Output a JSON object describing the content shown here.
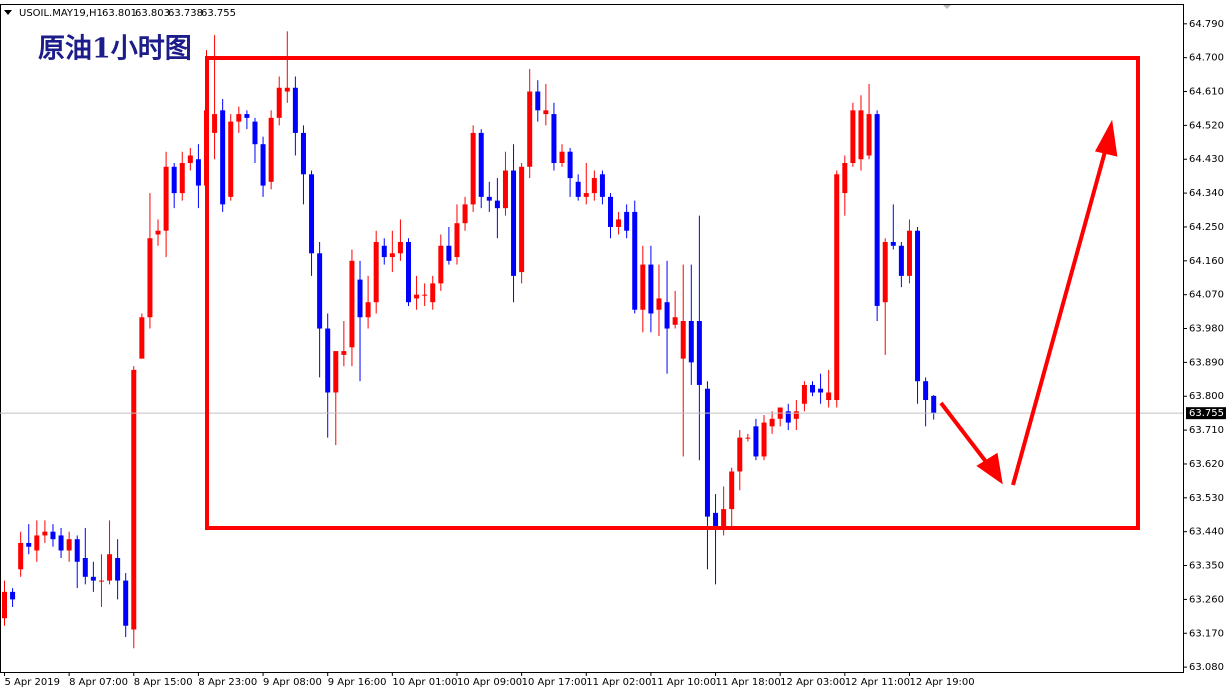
{
  "chart_data": {
    "type": "candlestick",
    "title": "USOIL.MAY19,H1",
    "annotation": "原油1小时图",
    "up_color": "#ff0000",
    "down_color": "#0000ff",
    "ylim": [
      63.067,
      64.84
    ],
    "yticks": [
      {
        "value": 64.79,
        "label": "64.790"
      },
      {
        "value": 64.7,
        "label": "64.700"
      },
      {
        "value": 64.61,
        "label": "64.610"
      },
      {
        "value": 64.52,
        "label": "64.520"
      },
      {
        "value": 64.43,
        "label": "64.430"
      },
      {
        "value": 64.34,
        "label": "64.340"
      },
      {
        "value": 64.25,
        "label": "64.250"
      },
      {
        "value": 64.16,
        "label": "64.160"
      },
      {
        "value": 64.07,
        "label": "64.070"
      },
      {
        "value": 63.98,
        "label": "63.980"
      },
      {
        "value": 63.89,
        "label": "63.890"
      },
      {
        "value": 63.8,
        "label": "63.800"
      },
      {
        "value": 63.71,
        "label": "63.710"
      },
      {
        "value": 63.62,
        "label": "63.620"
      },
      {
        "value": 63.53,
        "label": "63.530"
      },
      {
        "value": 63.44,
        "label": "63.440"
      },
      {
        "value": 63.35,
        "label": "63.350"
      },
      {
        "value": 63.26,
        "label": "63.260"
      },
      {
        "value": 63.17,
        "label": "63.170"
      },
      {
        "value": 63.08,
        "label": "63.080"
      }
    ],
    "categories": [
      "5 Apr 2019",
      null,
      null,
      null,
      null,
      null,
      null,
      null,
      "8 Apr 07:00",
      null,
      null,
      null,
      null,
      null,
      null,
      null,
      "8 Apr 15:00",
      null,
      null,
      null,
      null,
      null,
      null,
      null,
      "8 Apr 23:00",
      null,
      null,
      null,
      null,
      null,
      null,
      null,
      "9 Apr 08:00",
      null,
      null,
      null,
      null,
      null,
      null,
      null,
      "9 Apr 16:00",
      null,
      null,
      null,
      null,
      null,
      null,
      null,
      "10 Apr 01:00",
      null,
      null,
      null,
      null,
      null,
      null,
      null,
      "10 Apr 09:00",
      null,
      null,
      null,
      null,
      null,
      null,
      null,
      "10 Apr 17:00",
      null,
      null,
      null,
      null,
      null,
      null,
      null,
      "11 Apr 02:00",
      null,
      null,
      null,
      null,
      null,
      null,
      null,
      "11 Apr 10:00",
      null,
      null,
      null,
      null,
      null,
      null,
      null,
      "11 Apr 18:00",
      null,
      null,
      null,
      null,
      null,
      null,
      null,
      "12 Apr 03:00",
      null,
      null,
      null,
      null,
      null,
      null,
      null,
      "12 Apr 11:00",
      null,
      null,
      null,
      null,
      null,
      null,
      null,
      "12 Apr 19:00",
      null,
      null,
      null
    ],
    "open": [
      63.21,
      63.28,
      63.34,
      63.41,
      63.39,
      63.43,
      63.44,
      63.43,
      63.39,
      63.42,
      63.37,
      63.32,
      63.31,
      63.31,
      63.37,
      63.31,
      63.18,
      63.9,
      64.01,
      64.23,
      64.24,
      64.41,
      64.34,
      64.42,
      64.43,
      64.36,
      64.5,
      64.56,
      64.33,
      64.53,
      64.55,
      64.53,
      64.47,
      64.37,
      64.54,
      64.61,
      64.62,
      64.5,
      64.39,
      64.18,
      63.98,
      63.81,
      63.91,
      63.93,
      64.11,
      64.01,
      64.05,
      64.2,
      64.17,
      64.18,
      64.21,
      64.06,
      64.07,
      64.05,
      64.1,
      64.2,
      64.17,
      64.26,
      64.31,
      64.5,
      64.33,
      64.32,
      64.3,
      64.4,
      64.13,
      64.41,
      64.61,
      64.55,
      64.55,
      64.42,
      64.45,
      64.37,
      64.33,
      64.34,
      64.39,
      64.33,
      64.25,
      64.29,
      64.29,
      64.03,
      64.15,
      64.03,
      64.05,
      63.99,
      63.9,
      64.0,
      64.0,
      63.82,
      63.49,
      63.45,
      63.5,
      63.6,
      63.69,
      63.72,
      63.64,
      63.72,
      63.74,
      63.76,
      63.74,
      63.78,
      63.83,
      63.82,
      63.79,
      63.79,
      64.34,
      64.42,
      64.43,
      64.44,
      64.55,
      64.05,
      64.21,
      64.2,
      64.12,
      64.24,
      63.84,
      63.801
    ],
    "high": [
      63.31,
      63.29,
      63.44,
      63.46,
      63.47,
      63.47,
      63.46,
      63.45,
      63.44,
      63.43,
      63.45,
      63.36,
      63.38,
      63.47,
      63.42,
      63.33,
      63.88,
      64.02,
      64.34,
      64.27,
      64.45,
      64.42,
      64.45,
      64.46,
      64.47,
      64.72,
      64.76,
      64.59,
      64.55,
      64.57,
      64.56,
      64.54,
      64.49,
      64.56,
      64.65,
      64.77,
      64.65,
      64.52,
      64.4,
      64.21,
      64.02,
      63.92,
      64.0,
      64.19,
      64.16,
      64.12,
      64.24,
      64.22,
      64.24,
      64.27,
      64.22,
      64.12,
      64.1,
      64.12,
      64.23,
      64.25,
      64.31,
      64.33,
      64.52,
      64.51,
      64.37,
      64.38,
      64.45,
      64.47,
      64.42,
      64.67,
      64.64,
      64.63,
      64.58,
      64.47,
      64.46,
      64.39,
      64.42,
      64.4,
      64.4,
      64.34,
      64.29,
      64.31,
      64.32,
      64.2,
      64.2,
      64.15,
      64.16,
      64.08,
      64.15,
      64.15,
      64.28,
      63.84,
      63.54,
      63.56,
      63.61,
      63.71,
      63.7,
      63.74,
      63.75,
      63.76,
      63.77,
      63.78,
      63.79,
      63.84,
      63.84,
      63.86,
      63.87,
      64.4,
      64.44,
      64.58,
      64.6,
      64.63,
      64.56,
      64.22,
      64.31,
      64.21,
      64.27,
      64.25,
      63.85,
      63.803
    ],
    "low": [
      63.19,
      63.24,
      63.32,
      63.38,
      63.36,
      63.41,
      63.4,
      63.37,
      63.36,
      63.29,
      63.3,
      63.28,
      63.24,
      63.3,
      63.26,
      63.16,
      63.13,
      63.9,
      63.98,
      64.2,
      64.17,
      64.3,
      64.32,
      64.4,
      64.3,
      64.34,
      64.43,
      64.29,
      64.32,
      64.5,
      64.51,
      64.42,
      64.33,
      64.35,
      64.52,
      64.58,
      64.44,
      64.31,
      64.12,
      63.85,
      63.69,
      63.67,
      63.88,
      63.88,
      63.84,
      63.98,
      64.02,
      64.15,
      64.13,
      64.16,
      64.04,
      64.03,
      64.04,
      64.03,
      64.08,
      64.15,
      64.15,
      64.24,
      64.29,
      64.3,
      64.29,
      64.22,
      64.28,
      64.05,
      64.1,
      64.38,
      64.53,
      64.52,
      64.4,
      64.41,
      64.33,
      64.32,
      64.31,
      64.32,
      64.31,
      64.22,
      64.23,
      64.22,
      64.02,
      63.97,
      63.97,
      63.96,
      63.86,
      63.98,
      63.64,
      63.83,
      63.63,
      63.34,
      63.3,
      63.43,
      63.45,
      63.55,
      63.68,
      63.63,
      63.63,
      63.7,
      63.72,
      63.71,
      63.71,
      63.76,
      63.8,
      63.78,
      63.77,
      63.77,
      64.28,
      64.41,
      64.4,
      64.43,
      64.0,
      63.91,
      64.19,
      64.09,
      64.1,
      63.78,
      63.72,
      63.738
    ],
    "close": [
      63.28,
      63.26,
      63.41,
      63.4,
      63.43,
      63.44,
      63.42,
      63.39,
      63.42,
      63.36,
      63.32,
      63.31,
      63.31,
      63.38,
      63.31,
      63.19,
      63.87,
      64.01,
      64.22,
      64.24,
      64.41,
      64.34,
      64.42,
      64.44,
      64.36,
      64.56,
      64.55,
      64.31,
      64.53,
      64.55,
      64.54,
      64.47,
      64.36,
      64.54,
      64.62,
      64.62,
      64.5,
      64.39,
      64.18,
      63.98,
      63.81,
      63.92,
      63.92,
      64.16,
      64.01,
      64.05,
      64.21,
      64.17,
      64.18,
      64.21,
      64.05,
      64.07,
      64.07,
      64.1,
      64.2,
      64.16,
      64.26,
      64.31,
      64.5,
      64.33,
      64.32,
      64.3,
      64.4,
      64.12,
      64.41,
      64.61,
      64.56,
      64.56,
      64.42,
      64.45,
      64.38,
      64.33,
      64.34,
      64.38,
      64.33,
      64.25,
      64.27,
      64.24,
      64.03,
      64.15,
      64.02,
      64.06,
      63.98,
      64.01,
      64.0,
      63.89,
      63.83,
      63.48,
      63.45,
      63.5,
      63.6,
      63.69,
      63.69,
      63.64,
      63.73,
      63.74,
      63.77,
      63.73,
      63.76,
      63.83,
      63.81,
      63.81,
      63.81,
      64.39,
      64.42,
      64.56,
      64.56,
      64.55,
      64.04,
      64.21,
      64.2,
      64.12,
      64.24,
      63.84,
      63.79,
      63.755
    ]
  }
}
